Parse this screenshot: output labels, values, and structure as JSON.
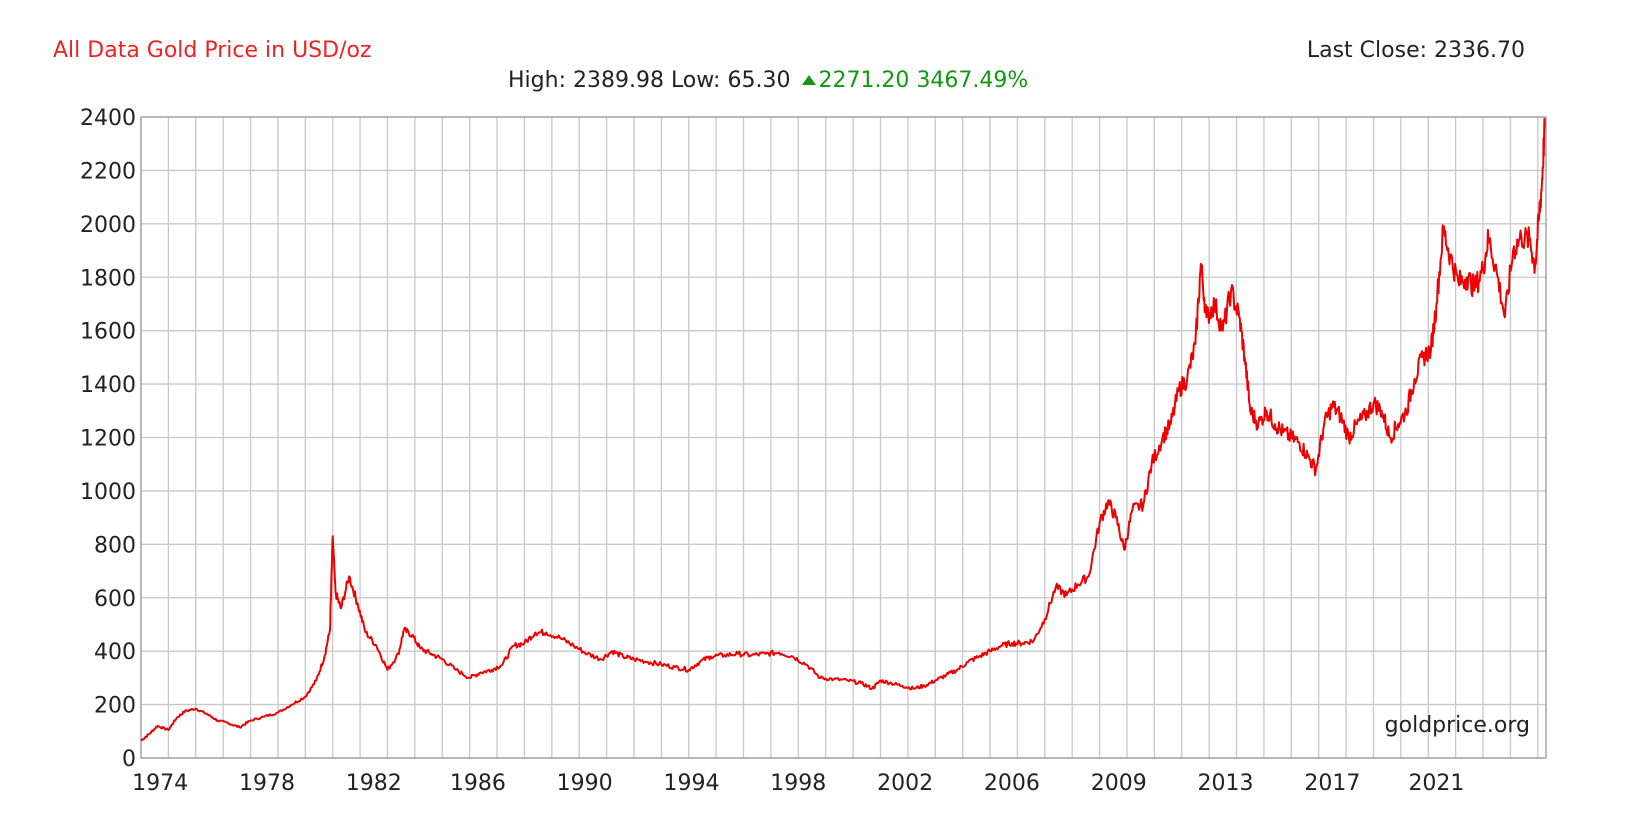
{
  "header": {
    "title": "All Data Gold Price in USD/oz",
    "last_close": "Last Close: 2336.70",
    "high_low": "High: 2389.98 Low: 65.30",
    "change_abs": "2271.20",
    "change_pct": "3467.49%"
  },
  "colors": {
    "title": "#ee2222",
    "line": "#ee0000",
    "up": "#119911",
    "grid": "#c8c8c8"
  },
  "watermark": "goldprice.org",
  "chart_data": {
    "type": "line",
    "title": "All Data Gold Price in USD/oz",
    "xlabel": "",
    "ylabel": "",
    "ylim": [
      0,
      2400
    ],
    "xlim": [
      1973.0,
      2024.3
    ],
    "yticks": [
      0,
      200,
      400,
      600,
      800,
      1000,
      1200,
      1400,
      1600,
      1800,
      2000,
      2200,
      2400
    ],
    "xtick_labels": [
      "1974",
      "1978",
      "1982",
      "1986",
      "1990",
      "1994",
      "1998",
      "2002",
      "2006",
      "2009",
      "2013",
      "2017",
      "2021"
    ],
    "xtick_positions": [
      1973.7,
      1977.6,
      1981.5,
      1985.3,
      1989.2,
      1993.1,
      1997.0,
      2000.9,
      2004.8,
      2008.7,
      2012.6,
      2016.5,
      2020.3
    ],
    "grid": true,
    "legend": "none",
    "series": [
      {
        "x": [
          1973.0,
          1973.3,
          1973.6,
          1974.0,
          1974.3,
          1974.6,
          1975.0,
          1975.4,
          1975.8,
          1976.2,
          1976.6,
          1977.0,
          1977.5,
          1978.0,
          1978.5,
          1979.0,
          1979.4,
          1979.7,
          1979.9,
          1980.0,
          1980.1,
          1980.3,
          1980.6,
          1980.9,
          1981.2,
          1981.6,
          1982.0,
          1982.4,
          1982.6,
          1982.9,
          1983.2,
          1983.6,
          1984.0,
          1984.5,
          1985.0,
          1985.4,
          1985.8,
          1986.2,
          1986.6,
          1987.0,
          1987.4,
          1987.8,
          1988.3,
          1988.8,
          1989.3,
          1989.8,
          1990.2,
          1990.6,
          1991.0,
          1991.5,
          1992.0,
          1992.5,
          1993.0,
          1993.4,
          1993.8,
          1994.3,
          1994.8,
          1995.3,
          1995.8,
          1996.3,
          1996.8,
          1997.3,
          1997.8,
          1998.3,
          1998.8,
          1999.3,
          1999.7,
          2000.0,
          2000.4,
          2000.8,
          2001.2,
          2001.6,
          2002.0,
          2002.4,
          2002.8,
          2003.2,
          2003.6,
          2004.0,
          2004.4,
          2004.8,
          2005.2,
          2005.6,
          2006.0,
          2006.4,
          2006.8,
          2007.2,
          2007.6,
          2008.0,
          2008.3,
          2008.6,
          2008.9,
          2009.2,
          2009.6,
          2009.9,
          2010.3,
          2010.6,
          2010.9,
          2011.2,
          2011.5,
          2011.7,
          2011.9,
          2012.2,
          2012.5,
          2012.8,
          2013.1,
          2013.3,
          2013.5,
          2013.8,
          2014.1,
          2014.4,
          2014.7,
          2015.0,
          2015.3,
          2015.6,
          2015.9,
          2016.2,
          2016.5,
          2016.8,
          2017.1,
          2017.4,
          2017.7,
          2018.0,
          2018.3,
          2018.6,
          2018.9,
          2019.2,
          2019.5,
          2019.8,
          2020.1,
          2020.3,
          2020.55,
          2020.8,
          2021.1,
          2021.4,
          2021.7,
          2022.0,
          2022.2,
          2022.5,
          2022.8,
          2023.1,
          2023.4,
          2023.7,
          2023.9,
          2024.05,
          2024.15,
          2024.25
        ],
        "values": [
          65,
          90,
          120,
          105,
          150,
          175,
          185,
          165,
          140,
          130,
          115,
          140,
          155,
          170,
          200,
          230,
          290,
          380,
          480,
          830,
          620,
          560,
          680,
          580,
          470,
          420,
          330,
          390,
          480,
          460,
          410,
          390,
          370,
          330,
          300,
          320,
          330,
          350,
          420,
          430,
          470,
          470,
          450,
          420,
          390,
          370,
          400,
          380,
          370,
          360,
          350,
          340,
          330,
          360,
          380,
          385,
          390,
          385,
          390,
          395,
          380,
          350,
          300,
          295,
          290,
          280,
          260,
          290,
          280,
          270,
          260,
          270,
          290,
          310,
          330,
          360,
          380,
          400,
          420,
          430,
          430,
          440,
          520,
          640,
          610,
          650,
          680,
          880,
          960,
          900,
          780,
          930,
          950,
          1100,
          1200,
          1250,
          1380,
          1420,
          1550,
          1850,
          1650,
          1700,
          1600,
          1750,
          1650,
          1500,
          1300,
          1250,
          1300,
          1250,
          1220,
          1200,
          1180,
          1130,
          1080,
          1250,
          1320,
          1280,
          1200,
          1250,
          1280,
          1330,
          1300,
          1200,
          1250,
          1300,
          1420,
          1500,
          1530,
          1700,
          1980,
          1880,
          1780,
          1800,
          1760,
          1830,
          1950,
          1820,
          1650,
          1900,
          1950,
          1940,
          1840,
          2030,
          2150,
          2360
        ]
      }
    ]
  }
}
